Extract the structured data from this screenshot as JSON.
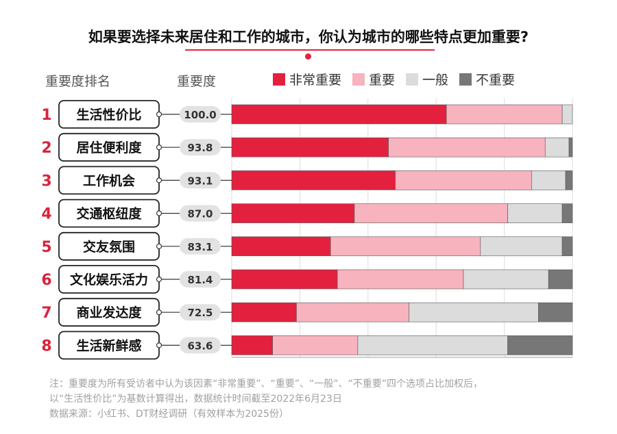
{
  "title": "如果要选择未来居住和工作的城市，你认为城市的哪些特点更加重要?",
  "headers": {
    "rank": "重要度排名",
    "score": "重要度"
  },
  "chart_data": {
    "type": "bar",
    "stacked": true,
    "orientation": "horizontal",
    "ranks": [
      "1",
      "2",
      "3",
      "4",
      "5",
      "6",
      "7",
      "8"
    ],
    "categories": [
      "生活性价比",
      "居住便利度",
      "工作机会",
      "交通枢纽度",
      "交友氛围",
      "文化娱乐活力",
      "商业发达度",
      "生活新鲜感"
    ],
    "importance": [
      "100.0",
      "93.8",
      "93.1",
      "87.0",
      "83.1",
      "81.4",
      "72.5",
      "63.6"
    ],
    "series": [
      {
        "name": "非常重要",
        "color": "#e3213f",
        "values": [
          63,
          46,
          48,
          36,
          29,
          31,
          19,
          12
        ]
      },
      {
        "name": "重要",
        "color": "#f7b3be",
        "values": [
          34,
          46,
          40,
          45,
          44,
          37,
          33,
          25
        ]
      },
      {
        "name": "一般",
        "color": "#dcdcdc",
        "values": [
          3,
          7,
          10,
          16,
          24,
          25,
          38,
          44
        ]
      },
      {
        "name": "不重要",
        "color": "#777777",
        "values": [
          0,
          1,
          2,
          3,
          3,
          7,
          10,
          19
        ]
      }
    ],
    "xlim": [
      0,
      100
    ],
    "colors": {
      "rank": "#d8243c",
      "label_border": "#222222",
      "score_pill": "#e2e2e2",
      "grid": "#dddddd"
    }
  },
  "notes": [
    "注：重要度为所有受访者中认为该因素“非常重要”、“重要”、“一般”、“不重要”四个选项占比加权后，",
    "以“生活性价比”为基数计算得出，数据统计时间截至2022年6月23日",
    "数据来源：小红书、DT财经调研（有效样本为2025份）"
  ]
}
